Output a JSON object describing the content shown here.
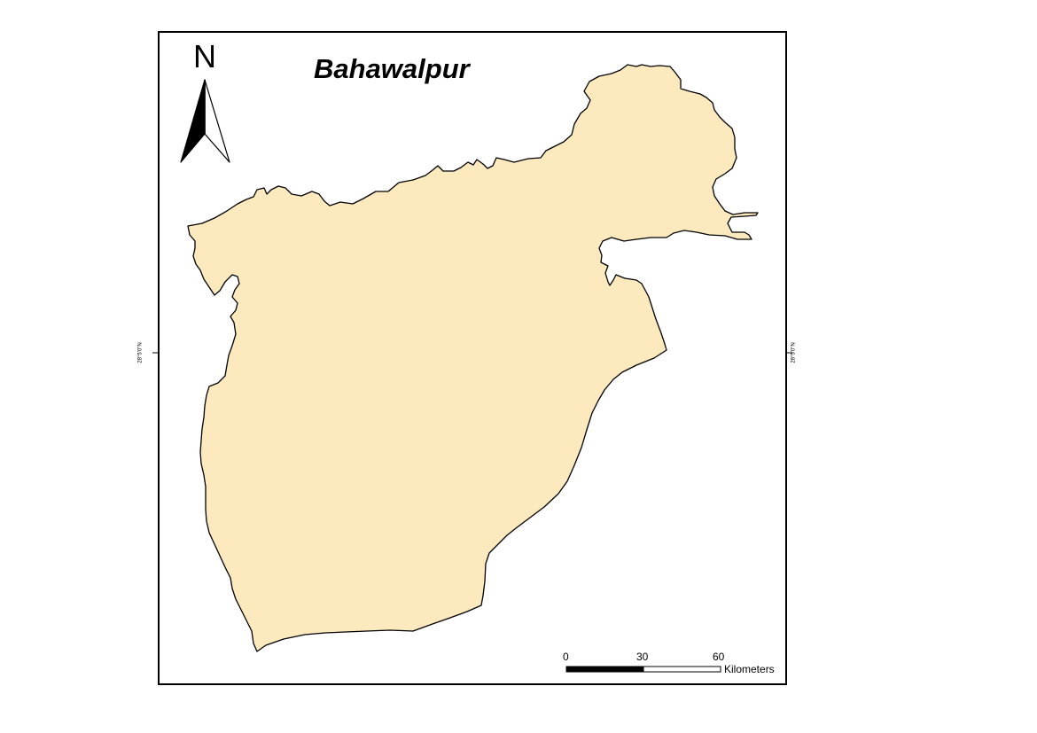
{
  "map": {
    "title": "Bahawalpur",
    "north_arrow": {
      "letter": "N",
      "icon": "north-arrow-icon"
    },
    "graticule": {
      "left_label": "28°5'0\"N",
      "right_label": "28°5'0\"N"
    },
    "scale_bar": {
      "ticks": [
        "0",
        "30",
        "60"
      ],
      "unit": "Kilometers"
    },
    "colors": {
      "region_fill": "#fde9be",
      "region_stroke": "#000000",
      "frame": "#000000",
      "background": "#ffffff"
    }
  }
}
